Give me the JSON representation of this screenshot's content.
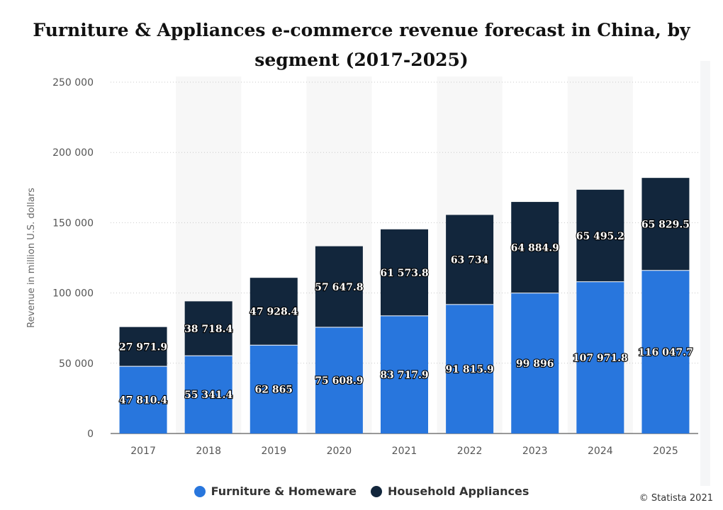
{
  "chart_data": {
    "type": "bar",
    "stacked": true,
    "title": "Furniture & Appliances e-commerce revenue forecast in China, by segment (2017-2025)",
    "title_lines": [
      "Furniture & Appliances e-commerce revenue forecast in China, by",
      "segment (2017-2025)"
    ],
    "xlabel": "",
    "ylabel": "Revenue in million U.S. dollars",
    "ylim": [
      0,
      250000
    ],
    "yticks": [
      0,
      50000,
      100000,
      150000,
      200000,
      250000
    ],
    "ytick_labels": [
      "0",
      "50 000",
      "100 000",
      "150 000",
      "200 000",
      "250 000"
    ],
    "categories": [
      "2017",
      "2018",
      "2019",
      "2020",
      "2021",
      "2022",
      "2023",
      "2024",
      "2025"
    ],
    "series": [
      {
        "name": "Furniture & Homeware",
        "color": "#2876dd",
        "values": [
          47810.4,
          55341.4,
          62865,
          75608.9,
          83717.9,
          91815.9,
          99896,
          107971.8,
          116047.7
        ],
        "labels": [
          "47 810.4",
          "55 341.4",
          "62 865",
          "75 608.9",
          "83 717.9",
          "91 815.9",
          "99 896",
          "107 971.8",
          "116 047.7"
        ]
      },
      {
        "name": "Household Appliances",
        "color": "#12263c",
        "values": [
          27971.9,
          38718.4,
          47928.4,
          57647.8,
          61573.8,
          63734,
          64884.9,
          65495.2,
          65829.5
        ],
        "labels": [
          "27 971.9",
          "38 718.4",
          "47 928.4",
          "57 647.8",
          "61 573.8",
          "63 734",
          "64 884.9",
          "65 495.2",
          "65 829.5"
        ]
      }
    ],
    "legend_position": "bottom-center",
    "grid": true
  },
  "credit": "© Statista 2021"
}
